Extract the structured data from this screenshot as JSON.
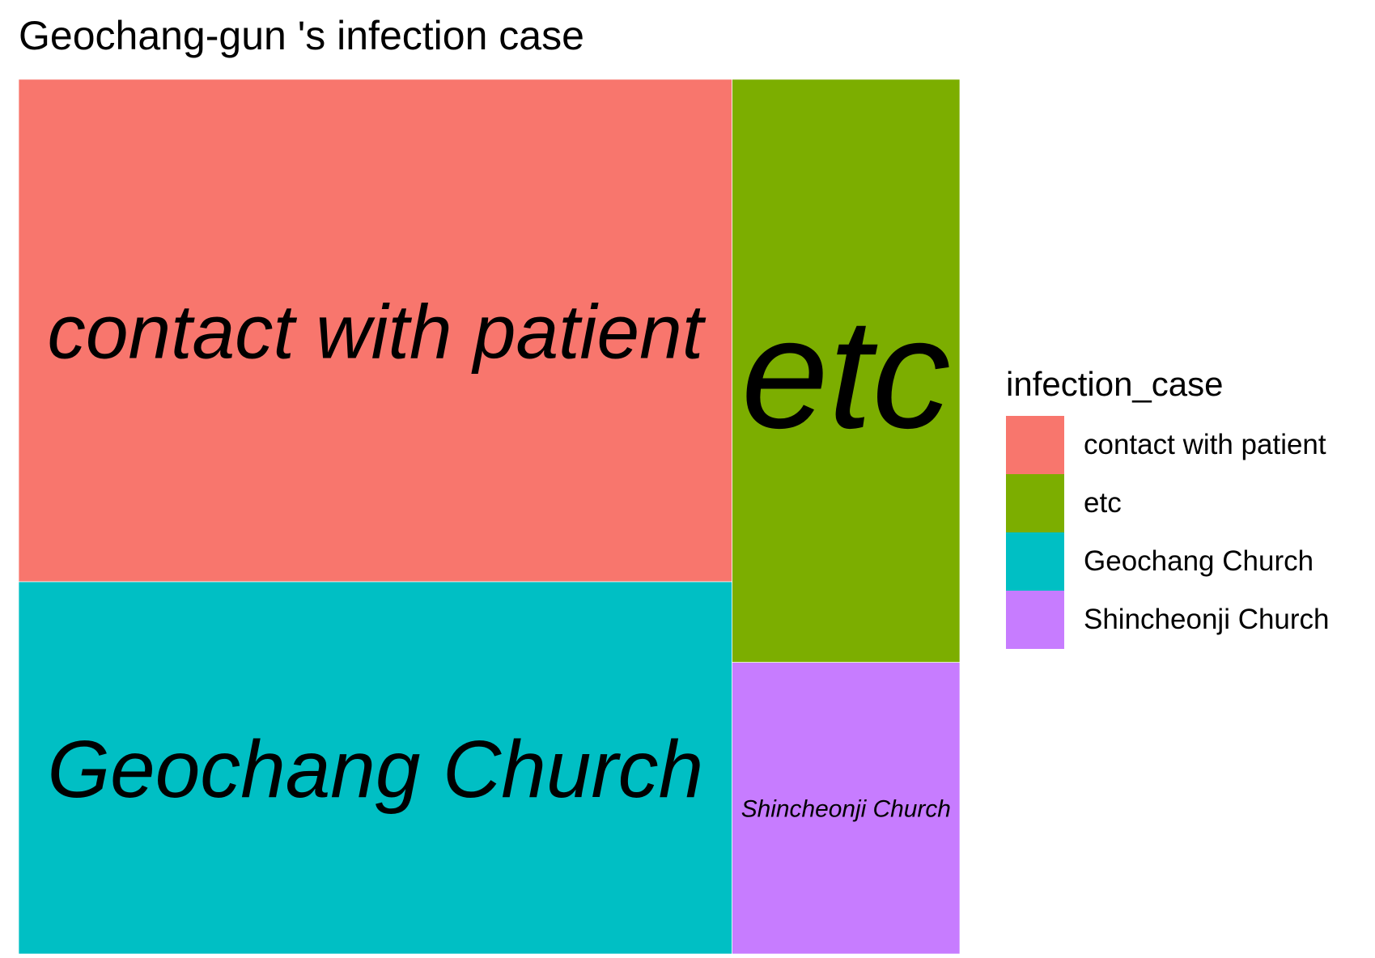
{
  "chart_data": {
    "type": "treemap",
    "title": "Geochang-gun 's infection case",
    "legend_title": "infection_case",
    "legend_position": "right",
    "categories": [
      "contact with patient",
      "etc",
      "Geochang Church",
      "Shincheonji Church"
    ],
    "values": [
      27,
      10,
      20,
      5
    ],
    "colors": [
      "#F8766D",
      "#7CAE00",
      "#00BFC4",
      "#C77CFF"
    ]
  }
}
